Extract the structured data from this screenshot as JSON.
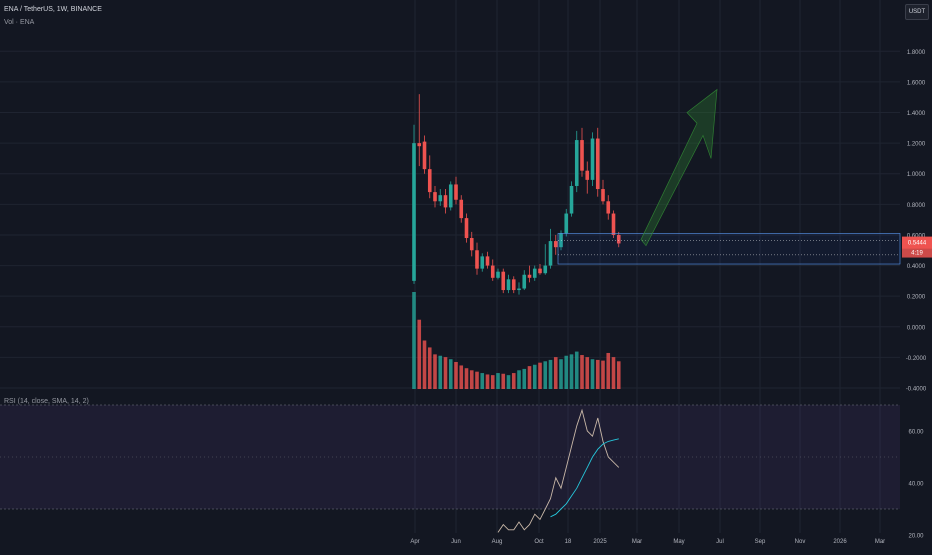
{
  "header": {
    "symbol_line": "ENA / TetherUS, 1W, BINANCE",
    "volume_legend": "Vol · ENA",
    "rsi_legend": "RSI (14, close, SMA, 14, 2)",
    "currency_button": "USDT"
  },
  "colors": {
    "up": "#26a69a",
    "down": "#ef5350",
    "rsi_line": "#c9b8a8",
    "rsi_ma": "#26c6da",
    "arrow": "#2e7d32",
    "current_price_tag": "#ef5350"
  },
  "chart_data": [
    {
      "type": "candlestick",
      "ylim": [
        -0.4,
        1.9
      ],
      "y_tick_labels": [
        "1.8000",
        "1.6000",
        "1.4000",
        "1.2000",
        "1.0000",
        "0.8000",
        "0.6000",
        "0.4000",
        "0.2000",
        "0.0000",
        "-0.2000",
        "-0.4000"
      ],
      "y_ticks": [
        1.8,
        1.6,
        1.4,
        1.2,
        1.0,
        0.8,
        0.6,
        0.4,
        0.2,
        0.0,
        -0.2,
        -0.4
      ],
      "x_tick_labels": [
        "Apr",
        "Jun",
        "Aug",
        "Oct",
        "18",
        "2025",
        "Mar",
        "May",
        "Jul",
        "Sep",
        "Nov",
        "2026",
        "Mar"
      ],
      "price_tags": [
        "0.5444",
        "4:19"
      ],
      "candles": [
        {
          "o": 0.3,
          "h": 1.32,
          "l": 0.28,
          "c": 1.2
        },
        {
          "o": 1.2,
          "h": 1.52,
          "l": 1.05,
          "c": 1.18
        },
        {
          "o": 1.21,
          "h": 1.25,
          "l": 1.0,
          "c": 1.03
        },
        {
          "o": 1.03,
          "h": 1.12,
          "l": 0.84,
          "c": 0.88
        },
        {
          "o": 0.88,
          "h": 0.92,
          "l": 0.78,
          "c": 0.82
        },
        {
          "o": 0.82,
          "h": 0.9,
          "l": 0.79,
          "c": 0.86
        },
        {
          "o": 0.86,
          "h": 0.9,
          "l": 0.74,
          "c": 0.78
        },
        {
          "o": 0.78,
          "h": 0.95,
          "l": 0.76,
          "c": 0.93
        },
        {
          "o": 0.93,
          "h": 0.98,
          "l": 0.8,
          "c": 0.83
        },
        {
          "o": 0.83,
          "h": 0.86,
          "l": 0.68,
          "c": 0.71
        },
        {
          "o": 0.71,
          "h": 0.74,
          "l": 0.55,
          "c": 0.58
        },
        {
          "o": 0.58,
          "h": 0.62,
          "l": 0.46,
          "c": 0.5
        },
        {
          "o": 0.5,
          "h": 0.55,
          "l": 0.34,
          "c": 0.38
        },
        {
          "o": 0.38,
          "h": 0.48,
          "l": 0.36,
          "c": 0.46
        },
        {
          "o": 0.46,
          "h": 0.49,
          "l": 0.38,
          "c": 0.4
        },
        {
          "o": 0.4,
          "h": 0.44,
          "l": 0.3,
          "c": 0.32
        },
        {
          "o": 0.32,
          "h": 0.38,
          "l": 0.31,
          "c": 0.36
        },
        {
          "o": 0.36,
          "h": 0.38,
          "l": 0.22,
          "c": 0.24
        },
        {
          "o": 0.24,
          "h": 0.34,
          "l": 0.22,
          "c": 0.31
        },
        {
          "o": 0.31,
          "h": 0.33,
          "l": 0.22,
          "c": 0.24
        },
        {
          "o": 0.24,
          "h": 0.29,
          "l": 0.21,
          "c": 0.25
        },
        {
          "o": 0.25,
          "h": 0.37,
          "l": 0.24,
          "c": 0.34
        },
        {
          "o": 0.34,
          "h": 0.4,
          "l": 0.29,
          "c": 0.32
        },
        {
          "o": 0.32,
          "h": 0.4,
          "l": 0.3,
          "c": 0.38
        },
        {
          "o": 0.38,
          "h": 0.41,
          "l": 0.34,
          "c": 0.35
        },
        {
          "o": 0.35,
          "h": 0.54,
          "l": 0.34,
          "c": 0.4
        },
        {
          "o": 0.4,
          "h": 0.64,
          "l": 0.38,
          "c": 0.56
        },
        {
          "o": 0.56,
          "h": 0.6,
          "l": 0.47,
          "c": 0.52
        },
        {
          "o": 0.52,
          "h": 0.63,
          "l": 0.5,
          "c": 0.61
        },
        {
          "o": 0.61,
          "h": 0.77,
          "l": 0.59,
          "c": 0.74
        },
        {
          "o": 0.74,
          "h": 0.95,
          "l": 0.72,
          "c": 0.92
        },
        {
          "o": 0.92,
          "h": 1.28,
          "l": 0.88,
          "c": 1.22
        },
        {
          "o": 1.22,
          "h": 1.3,
          "l": 0.98,
          "c": 1.02
        },
        {
          "o": 1.02,
          "h": 1.08,
          "l": 0.87,
          "c": 0.96
        },
        {
          "o": 0.96,
          "h": 1.27,
          "l": 0.92,
          "c": 1.23
        },
        {
          "o": 1.23,
          "h": 1.3,
          "l": 0.85,
          "c": 0.9
        },
        {
          "o": 0.9,
          "h": 0.96,
          "l": 0.8,
          "c": 0.82
        },
        {
          "o": 0.82,
          "h": 0.86,
          "l": 0.7,
          "c": 0.74
        },
        {
          "o": 0.74,
          "h": 0.76,
          "l": 0.58,
          "c": 0.6
        },
        {
          "o": 0.6,
          "h": 0.62,
          "l": 0.52,
          "c": 0.5444
        }
      ],
      "volume": [
        14,
        10,
        7,
        6,
        5,
        4.8,
        4.6,
        4.3,
        3.9,
        3.4,
        3.0,
        2.7,
        2.5,
        2.3,
        2.1,
        2.0,
        2.3,
        2.2,
        2.0,
        2.3,
        2.7,
        2.9,
        3.3,
        3.5,
        3.8,
        4.0,
        4.2,
        4.6,
        4.3,
        4.8,
        5.0,
        5.4,
        4.9,
        4.6,
        4.3,
        4.2,
        4.1,
        5.2,
        4.6,
        4.0
      ]
    },
    {
      "type": "line",
      "name_line": "RSI",
      "ylim": [
        15,
        75
      ],
      "y_tick_labels": [
        "60.00",
        "40.00",
        "20.00"
      ],
      "y_ticks": [
        60,
        40,
        20
      ],
      "rsi": [
        null,
        null,
        null,
        null,
        null,
        null,
        null,
        null,
        null,
        null,
        null,
        null,
        null,
        null,
        null,
        null,
        21,
        24,
        22,
        22,
        25,
        22,
        24,
        28,
        26,
        30,
        34,
        42,
        38,
        46,
        54,
        62,
        68,
        60,
        58,
        65,
        56,
        50,
        48,
        46
      ],
      "rsi_ma": [
        null,
        null,
        null,
        null,
        null,
        null,
        null,
        null,
        null,
        null,
        null,
        null,
        null,
        null,
        null,
        null,
        null,
        null,
        null,
        null,
        null,
        null,
        null,
        null,
        null,
        null,
        27,
        28,
        30,
        32,
        35,
        38,
        42,
        46,
        50,
        53,
        55,
        56,
        56.5,
        57
      ]
    }
  ]
}
